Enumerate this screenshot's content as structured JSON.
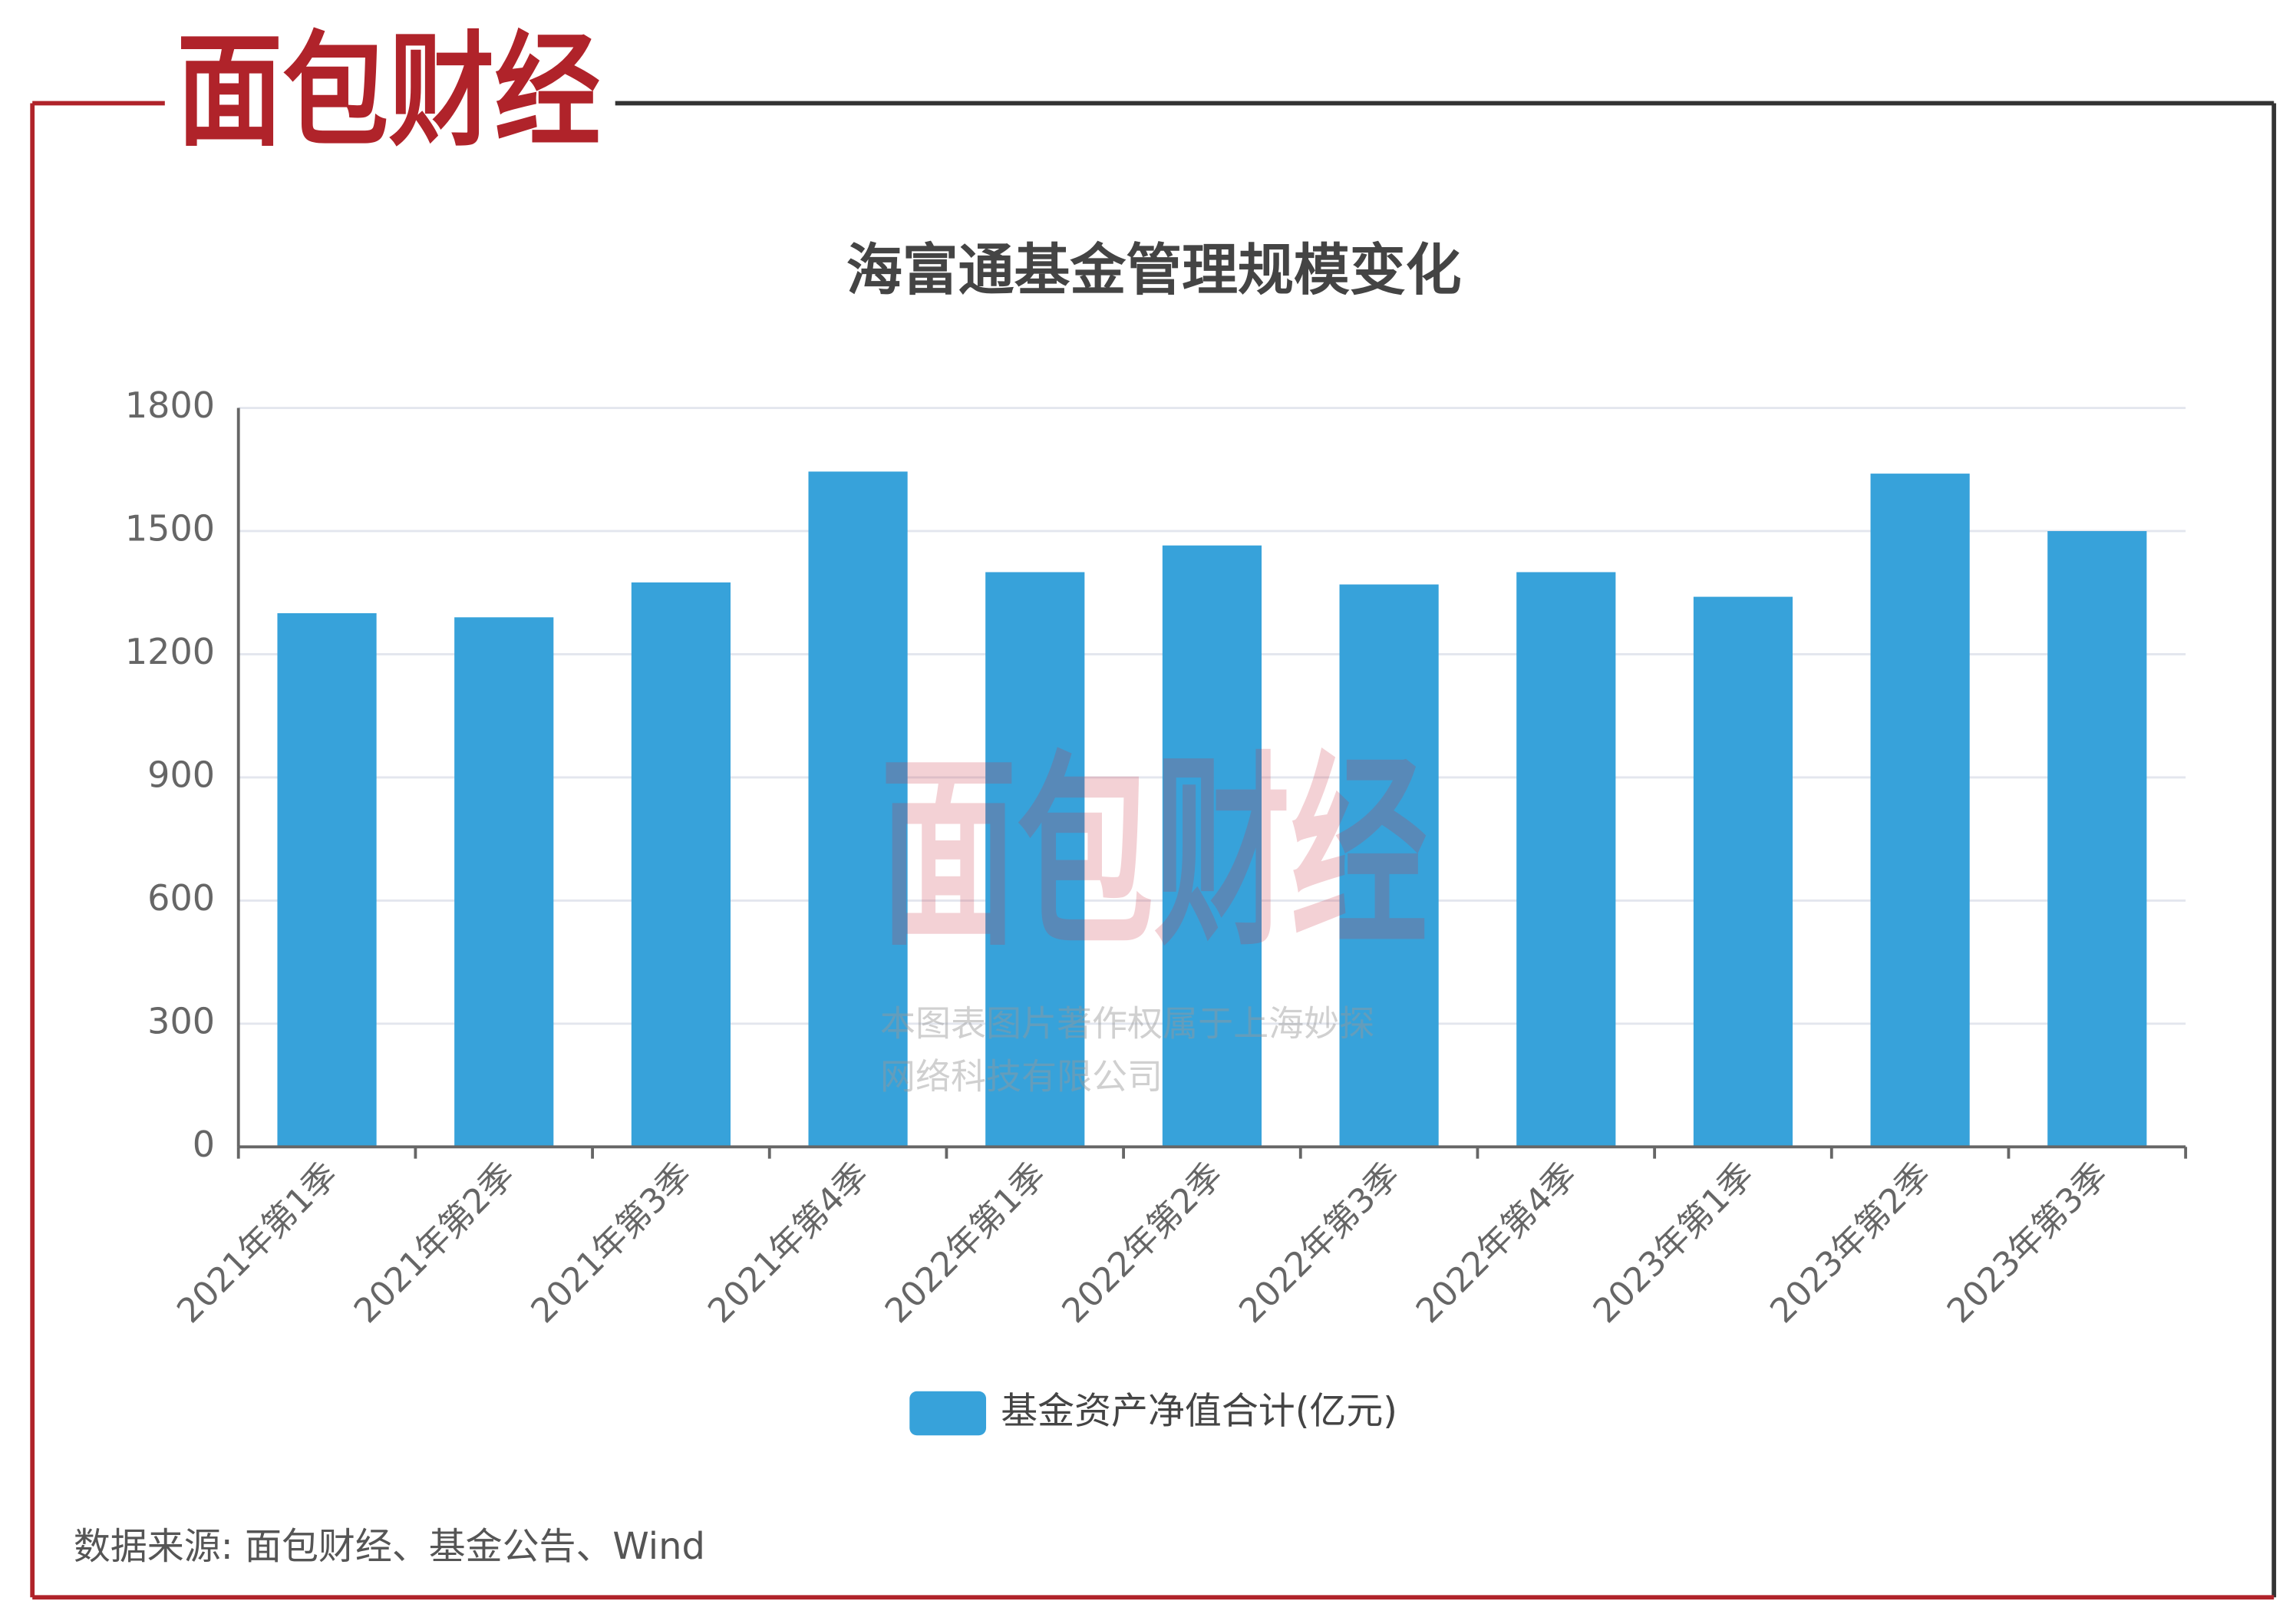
{
  "logo": "面包财经",
  "watermark": {
    "logo": "面包财经",
    "lines": [
      "本图表图片著作权属于上海妙探",
      "网络科技有限公司"
    ]
  },
  "source": "数据来源: 面包财经、基金公告、Wind",
  "chart_data": {
    "type": "bar",
    "title": "海富通基金管理规模变化",
    "categories": [
      "2021年第1季",
      "2021年第2季",
      "2021年第3季",
      "2021年第4季",
      "2022年第1季",
      "2022年第2季",
      "2022年第3季",
      "2022年第4季",
      "2023年第1季",
      "2023年第2季",
      "2023年第3季"
    ],
    "series": [
      {
        "name": "基金资产净值合计(亿元)",
        "color": "#37a2da",
        "values": [
          1300,
          1290,
          1375,
          1645,
          1400,
          1465,
          1370,
          1400,
          1340,
          1640,
          1500
        ]
      }
    ],
    "ylim": [
      0,
      1800
    ],
    "yticks": [
      0,
      300,
      600,
      900,
      1200,
      1500,
      1800
    ],
    "grid": true,
    "legend": "bottom"
  }
}
